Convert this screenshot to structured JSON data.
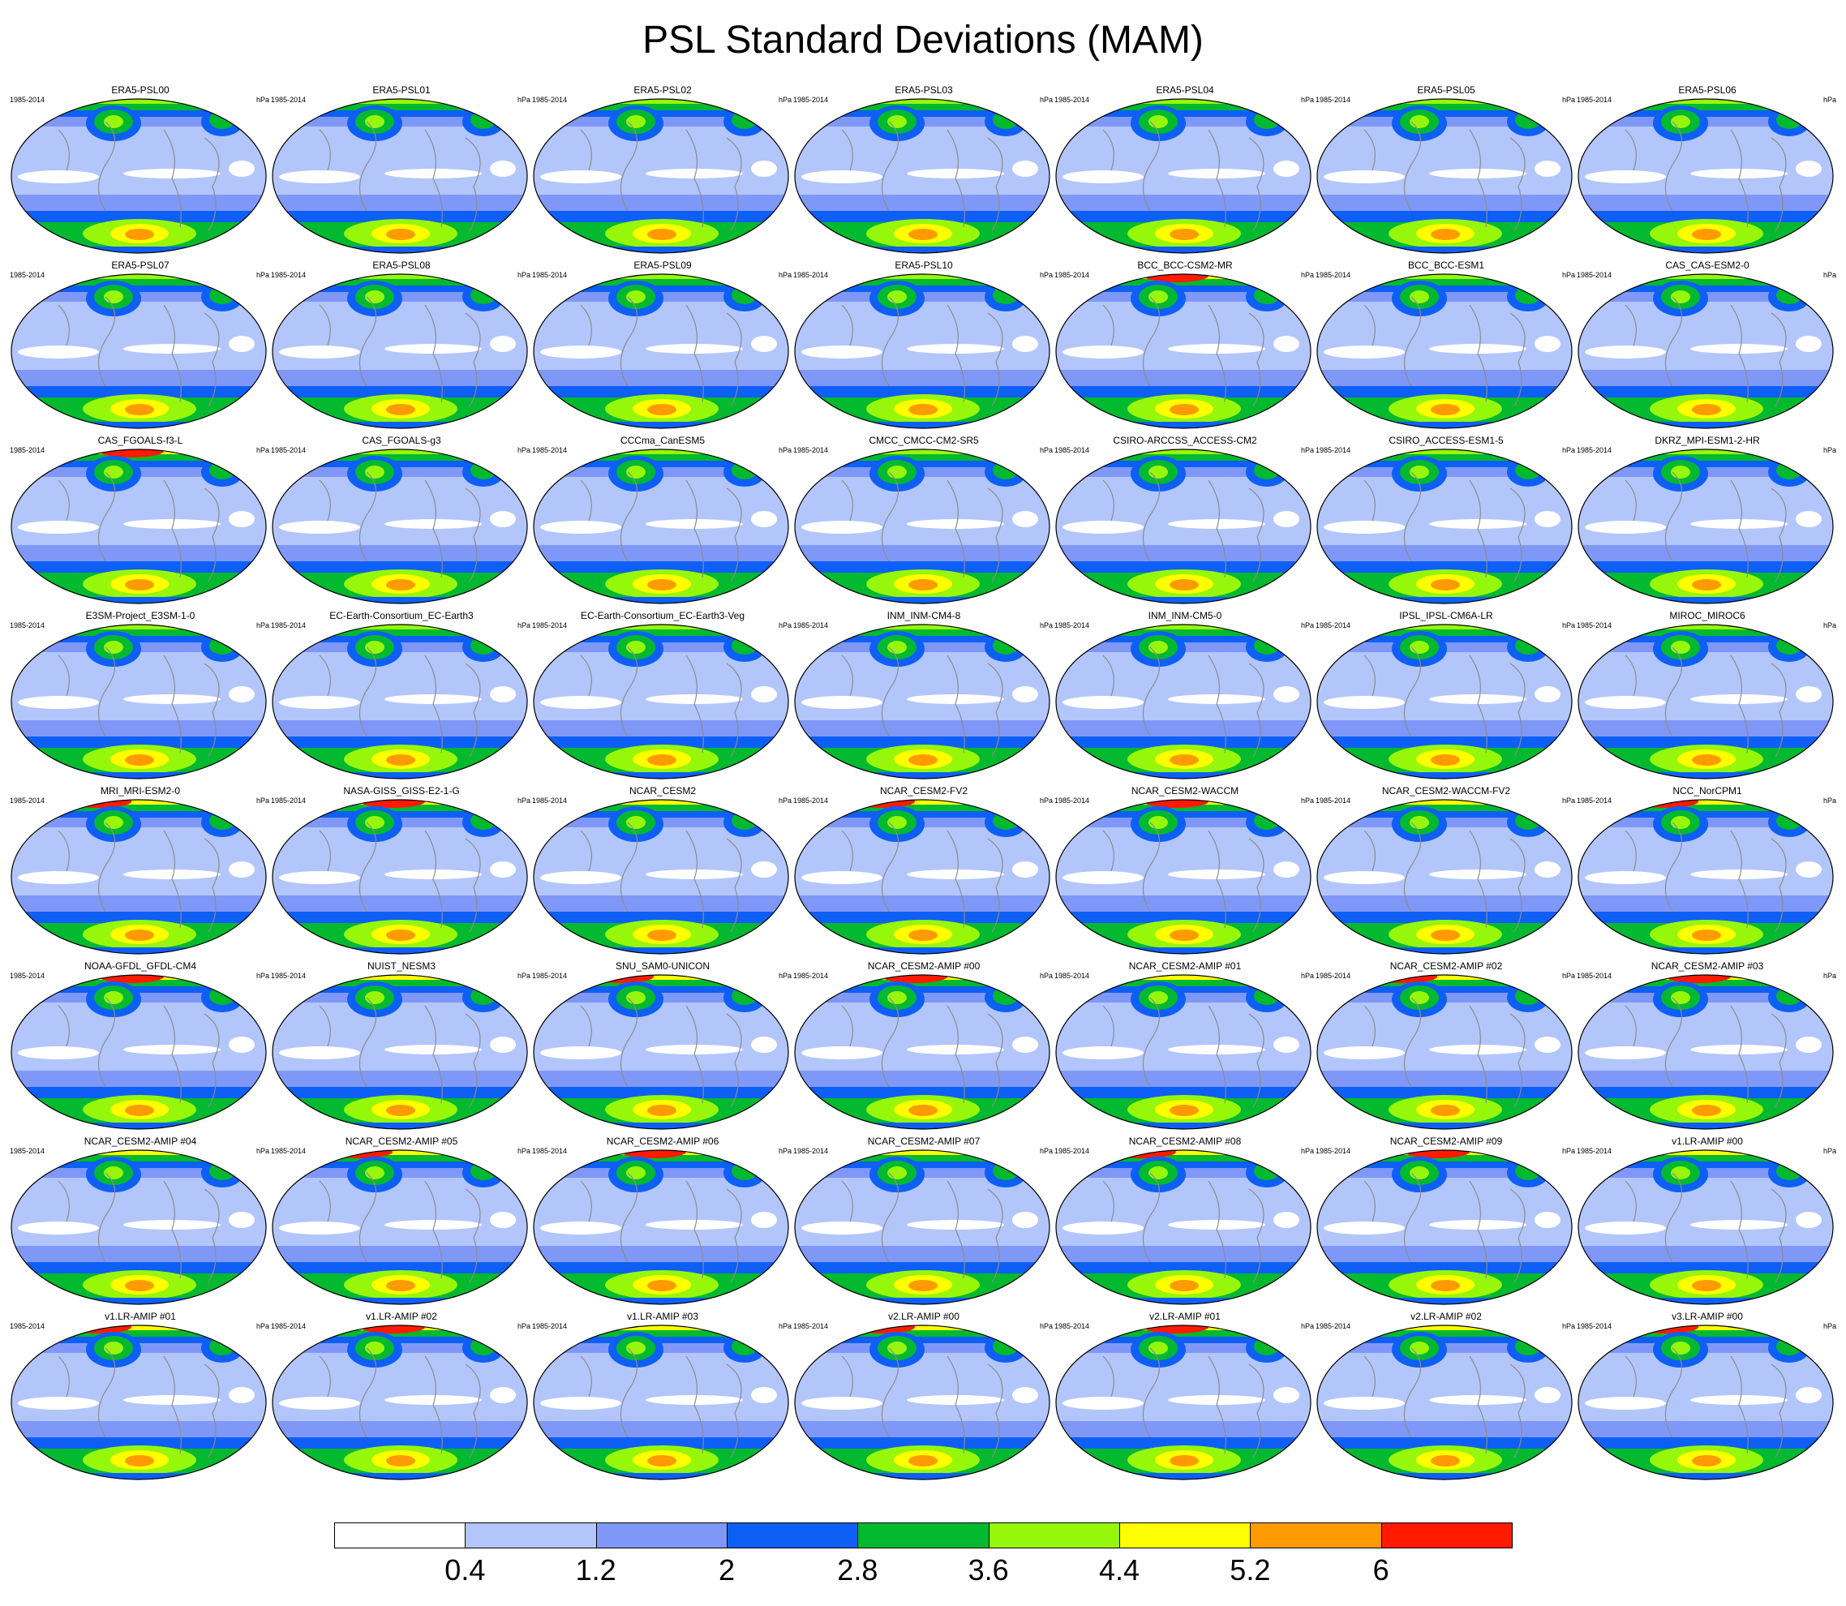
{
  "title": "PSL Standard Deviations (MAM)",
  "panel_period": "1985-2014",
  "panel_units": "hPa",
  "colors": {
    "levels": [
      "#ffffff",
      "#b3c6fb",
      "#7f98f7",
      "#0e5ff5",
      "#03b930",
      "#97f70b",
      "#ffff00",
      "#ff9a00",
      "#ff1a00"
    ],
    "coast": "#8c8c8c"
  },
  "colorbar": {
    "tick_labels": [
      "0.4",
      "1.2",
      "2",
      "2.8",
      "3.6",
      "4.4",
      "5.2",
      "6"
    ]
  },
  "chart_data": {
    "type": "heatmap",
    "projection": "global map grid",
    "contour_levels": [
      0.4,
      1.2,
      2,
      2.8,
      3.6,
      4.4,
      5.2,
      6
    ],
    "panels": [
      "ERA5-PSL00",
      "ERA5-PSL01",
      "ERA5-PSL02",
      "ERA5-PSL03",
      "ERA5-PSL04",
      "ERA5-PSL05",
      "ERA5-PSL06",
      "ERA5-PSL07",
      "ERA5-PSL08",
      "ERA5-PSL09",
      "ERA5-PSL10",
      "BCC_BCC-CSM2-MR",
      "BCC_BCC-ESM1",
      "CAS_CAS-ESM2-0",
      "CAS_FGOALS-f3-L",
      "CAS_FGOALS-g3",
      "CCCma_CanESM5",
      "CMCC_CMCC-CM2-SR5",
      "CSIRO-ARCCSS_ACCESS-CM2",
      "CSIRO_ACCESS-ESM1-5",
      "DKRZ_MPI-ESM1-2-HR",
      "E3SM-Project_E3SM-1-0",
      "EC-Earth-Consortium_EC-Earth3",
      "EC-Earth-Consortium_EC-Earth3-Veg",
      "INM_INM-CM4-8",
      "INM_INM-CM5-0",
      "IPSL_IPSL-CM6A-LR",
      "MIROC_MIROC6",
      "MRI_MRI-ESM2-0",
      "NASA-GISS_GISS-E2-1-G",
      "NCAR_CESM2",
      "NCAR_CESM2-FV2",
      "NCAR_CESM2-WACCM",
      "NCAR_CESM2-WACCM-FV2",
      "NCC_NorCPM1",
      "NOAA-GFDL_GFDL-CM4",
      "NUIST_NESM3",
      "SNU_SAM0-UNICON",
      "NCAR_CESM2-AMIP  #00",
      "NCAR_CESM2-AMIP  #01",
      "NCAR_CESM2-AMIP  #02",
      "NCAR_CESM2-AMIP  #03",
      "NCAR_CESM2-AMIP  #04",
      "NCAR_CESM2-AMIP  #05",
      "NCAR_CESM2-AMIP  #06",
      "NCAR_CESM2-AMIP  #07",
      "NCAR_CESM2-AMIP  #08",
      "NCAR_CESM2-AMIP  #09",
      "v1.LR-AMIP  #00",
      "v1.LR-AMIP  #01",
      "v1.LR-AMIP  #02",
      "v1.LR-AMIP  #03",
      "v2.LR-AMIP  #00",
      "v2.LR-AMIP  #01",
      "v2.LR-AMIP  #02",
      "v3.LR-AMIP  #00"
    ]
  }
}
